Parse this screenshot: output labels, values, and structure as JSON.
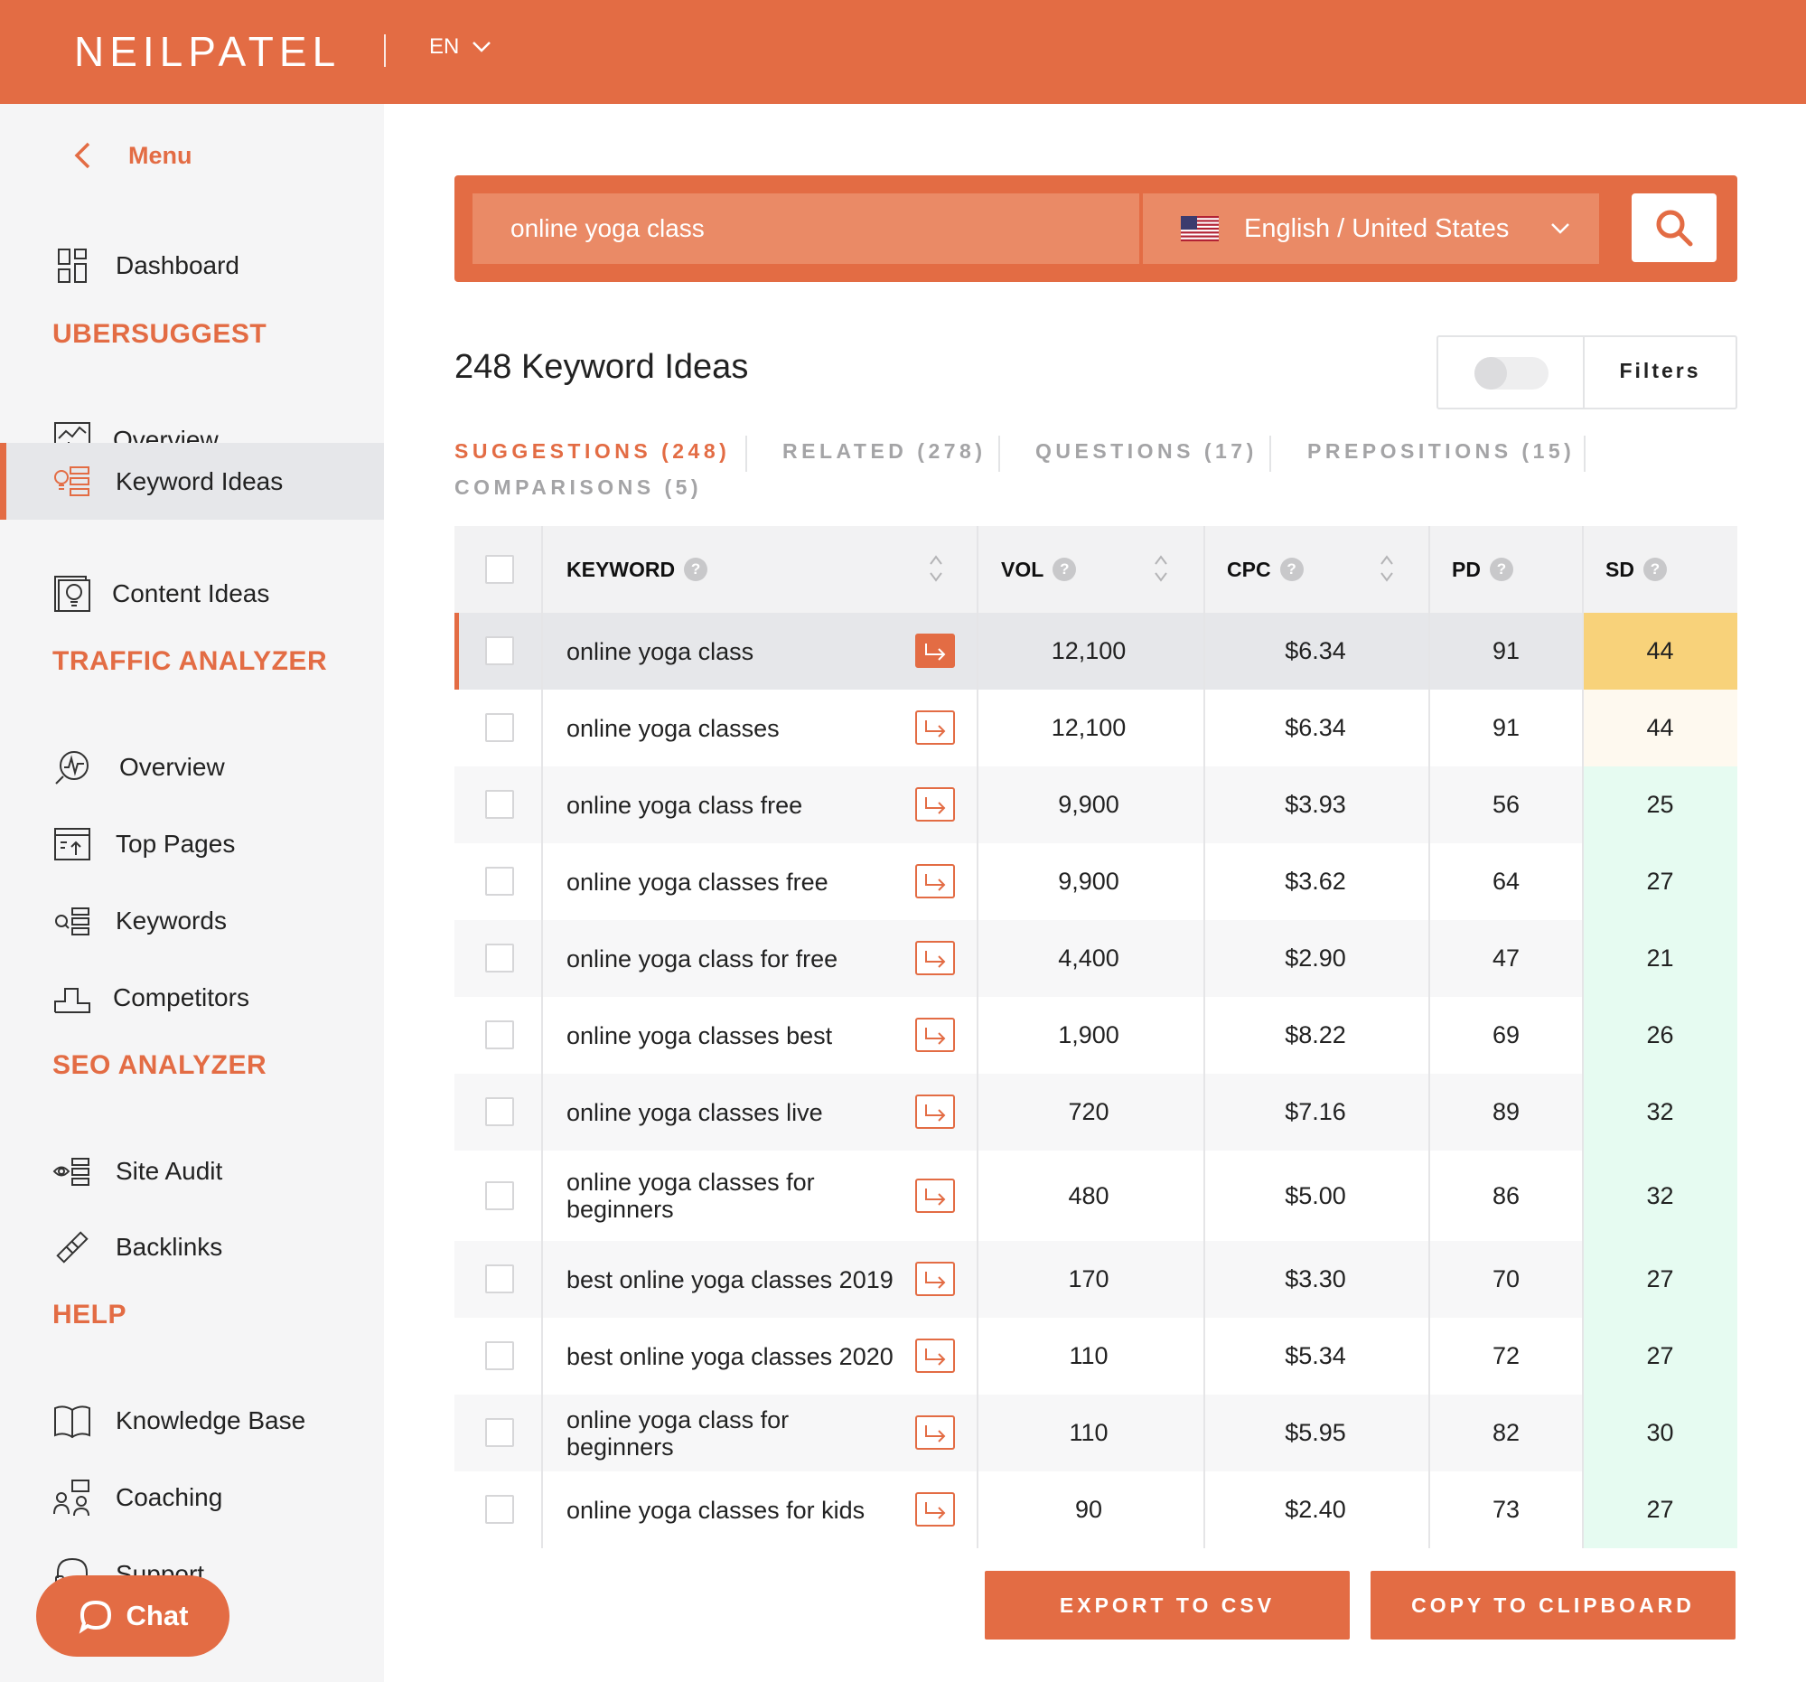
{
  "header": {
    "brand": "NEILPATEL",
    "language": "EN"
  },
  "sidebar": {
    "menu_label": "Menu",
    "dashboard": "Dashboard",
    "sections": [
      {
        "title": "UBERSUGGEST",
        "items": [
          {
            "label": "Overview",
            "icon": "overview-chart-icon"
          },
          {
            "label": "Keyword Ideas",
            "icon": "keyword-ideas-icon",
            "active": true
          },
          {
            "label": "Content Ideas",
            "icon": "content-ideas-icon"
          }
        ]
      },
      {
        "title": "TRAFFIC ANALYZER",
        "items": [
          {
            "label": "Overview",
            "icon": "traffic-overview-icon"
          },
          {
            "label": "Top Pages",
            "icon": "top-pages-icon"
          },
          {
            "label": "Keywords",
            "icon": "keywords-icon"
          },
          {
            "label": "Competitors",
            "icon": "competitors-icon"
          }
        ]
      },
      {
        "title": "SEO ANALYZER",
        "items": [
          {
            "label": "Site Audit",
            "icon": "site-audit-icon"
          },
          {
            "label": "Backlinks",
            "icon": "backlinks-icon"
          }
        ]
      },
      {
        "title": "HELP",
        "items": [
          {
            "label": "Knowledge Base",
            "icon": "book-icon"
          },
          {
            "label": "Coaching",
            "icon": "coaching-icon"
          },
          {
            "label": "Support",
            "icon": "headset-icon"
          }
        ]
      }
    ],
    "chat_label": "Chat"
  },
  "search": {
    "query": "online yoga class",
    "language_region": "English / United States"
  },
  "results": {
    "title": "248 Keyword Ideas",
    "filters_label": "Filters"
  },
  "tabs": [
    {
      "label": "SUGGESTIONS (248)",
      "active": true
    },
    {
      "label": "RELATED (278)"
    },
    {
      "label": "QUESTIONS (17)"
    },
    {
      "label": "PREPOSITIONS (15)"
    },
    {
      "label": "COMPARISONS (5)"
    }
  ],
  "table": {
    "headers": {
      "keyword": "KEYWORD",
      "vol": "VOL",
      "cpc": "CPC",
      "pd": "PD",
      "sd": "SD"
    },
    "rows": [
      {
        "keyword": "online yoga class",
        "vol": "12,100",
        "cpc": "$6.34",
        "pd": "91",
        "sd": "44"
      },
      {
        "keyword": "online yoga classes",
        "vol": "12,100",
        "cpc": "$6.34",
        "pd": "91",
        "sd": "44"
      },
      {
        "keyword": "online yoga class free",
        "vol": "9,900",
        "cpc": "$3.93",
        "pd": "56",
        "sd": "25"
      },
      {
        "keyword": "online yoga classes free",
        "vol": "9,900",
        "cpc": "$3.62",
        "pd": "64",
        "sd": "27"
      },
      {
        "keyword": "online yoga class for free",
        "vol": "4,400",
        "cpc": "$2.90",
        "pd": "47",
        "sd": "21"
      },
      {
        "keyword": "online yoga classes best",
        "vol": "1,900",
        "cpc": "$8.22",
        "pd": "69",
        "sd": "26"
      },
      {
        "keyword": "online yoga classes live",
        "vol": "720",
        "cpc": "$7.16",
        "pd": "89",
        "sd": "32"
      },
      {
        "keyword": "online yoga classes for beginners",
        "vol": "480",
        "cpc": "$5.00",
        "pd": "86",
        "sd": "32"
      },
      {
        "keyword": "best online yoga classes 2019",
        "vol": "170",
        "cpc": "$3.30",
        "pd": "70",
        "sd": "27"
      },
      {
        "keyword": "best online yoga classes 2020",
        "vol": "110",
        "cpc": "$5.34",
        "pd": "72",
        "sd": "27"
      },
      {
        "keyword": "online yoga class for beginners",
        "vol": "110",
        "cpc": "$5.95",
        "pd": "82",
        "sd": "30"
      },
      {
        "keyword": "online yoga classes for kids",
        "vol": "90",
        "cpc": "$2.40",
        "pd": "73",
        "sd": "27"
      }
    ],
    "sd_colors": {
      "highlight": "#f8d27a",
      "medium": "#fef9ef",
      "easy": "#e6fbf1"
    }
  },
  "actions": {
    "export": "EXPORT TO CSV",
    "copy": "COPY TO CLIPBOARD"
  },
  "colors": {
    "accent": "#e36c44",
    "sidebar_bg": "#f5f5f6",
    "active_bg": "#e6e7ea"
  }
}
